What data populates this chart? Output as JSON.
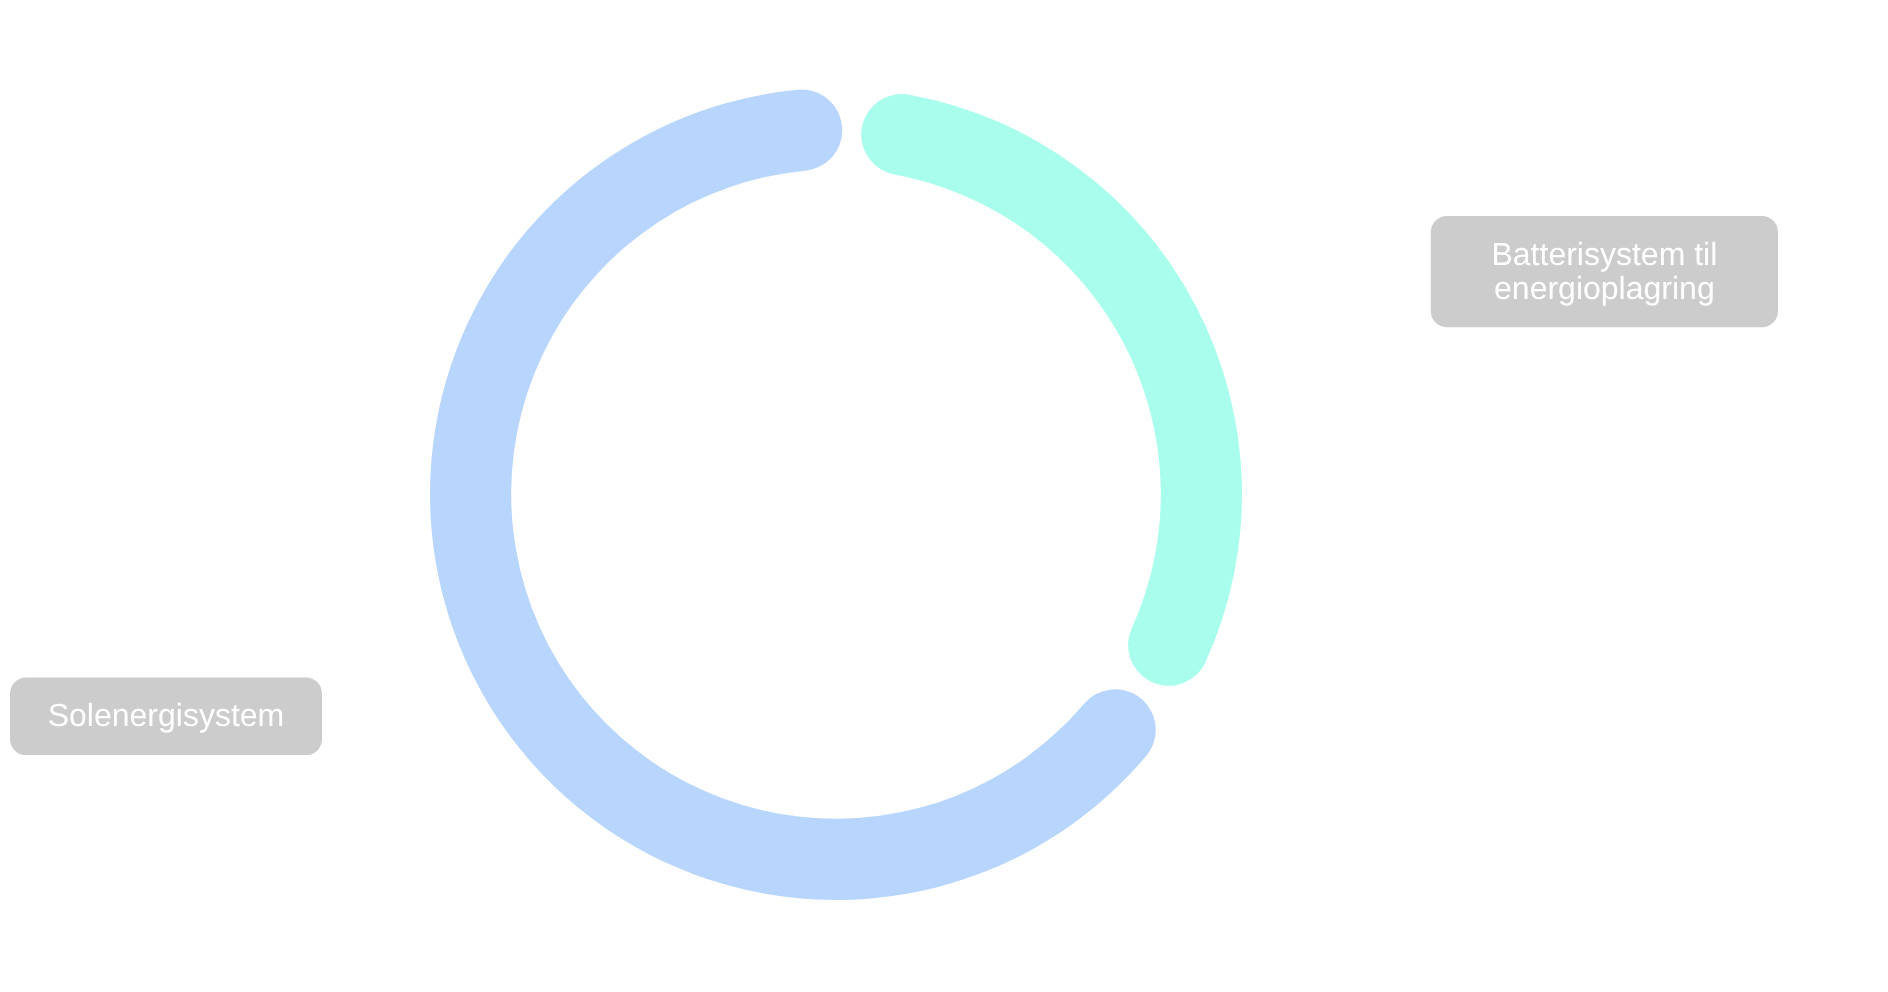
{
  "chart_data": {
    "type": "donut",
    "categories": [
      "Batterisystem til energioplagring",
      "Solenergisystem"
    ],
    "values": [
      33,
      67
    ],
    "colors": [
      "#a9fdec",
      "#b8d6fd"
    ]
  }
}
